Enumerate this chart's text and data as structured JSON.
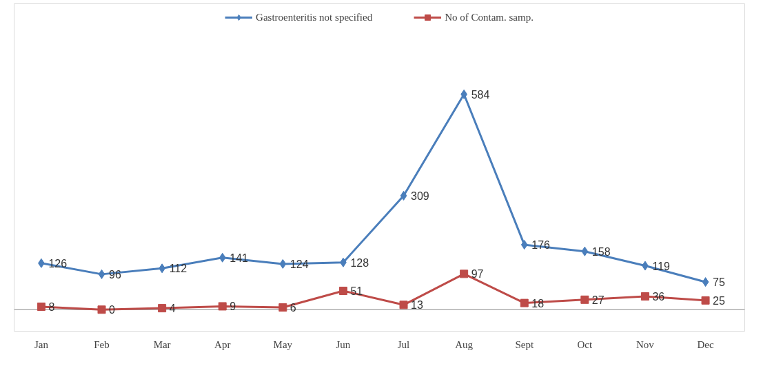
{
  "chart_data": {
    "type": "line",
    "categories": [
      "Jan",
      "Feb",
      "Mar",
      "Apr",
      "May",
      "Jun",
      "Jul",
      "Aug",
      "Sept",
      "Oct",
      "Nov",
      "Dec"
    ],
    "series": [
      {
        "name": "Gastroenteritis not specified",
        "color": "#4a7ebb",
        "marker": "diamond",
        "values": [
          126,
          96,
          112,
          141,
          124,
          128,
          309,
          584,
          176,
          158,
          119,
          75
        ]
      },
      {
        "name": "No of Contam. samp.",
        "color": "#be4b48",
        "marker": "square",
        "values": [
          8,
          0,
          4,
          9,
          6,
          51,
          13,
          97,
          18,
          27,
          36,
          25
        ]
      }
    ],
    "data_labels": true,
    "grid": false,
    "legend": "top",
    "tick_labels": "x",
    "line_style": "solid"
  }
}
